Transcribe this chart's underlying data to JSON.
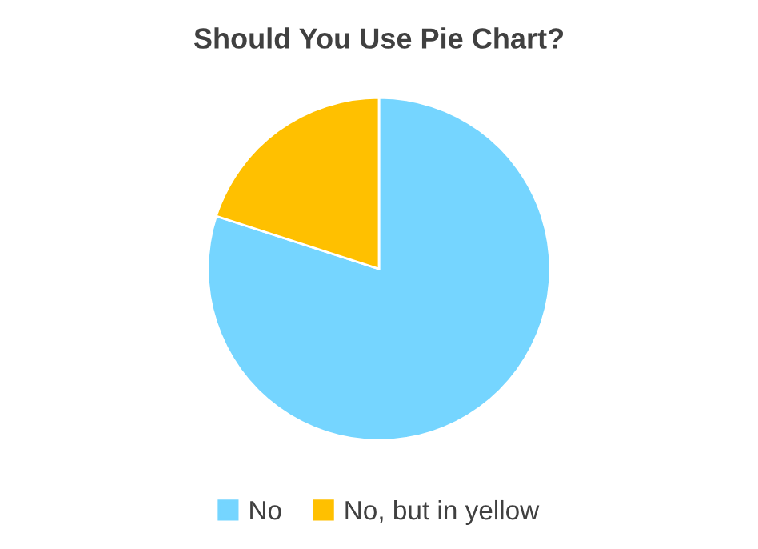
{
  "chart_data": {
    "type": "pie",
    "title": "Should You Use Pie Chart?",
    "categories": [
      "No",
      "No, but in yellow"
    ],
    "values": [
      80,
      20
    ],
    "colors": [
      "#75d5ff",
      "#ffc000"
    ],
    "legend": "bottom"
  }
}
